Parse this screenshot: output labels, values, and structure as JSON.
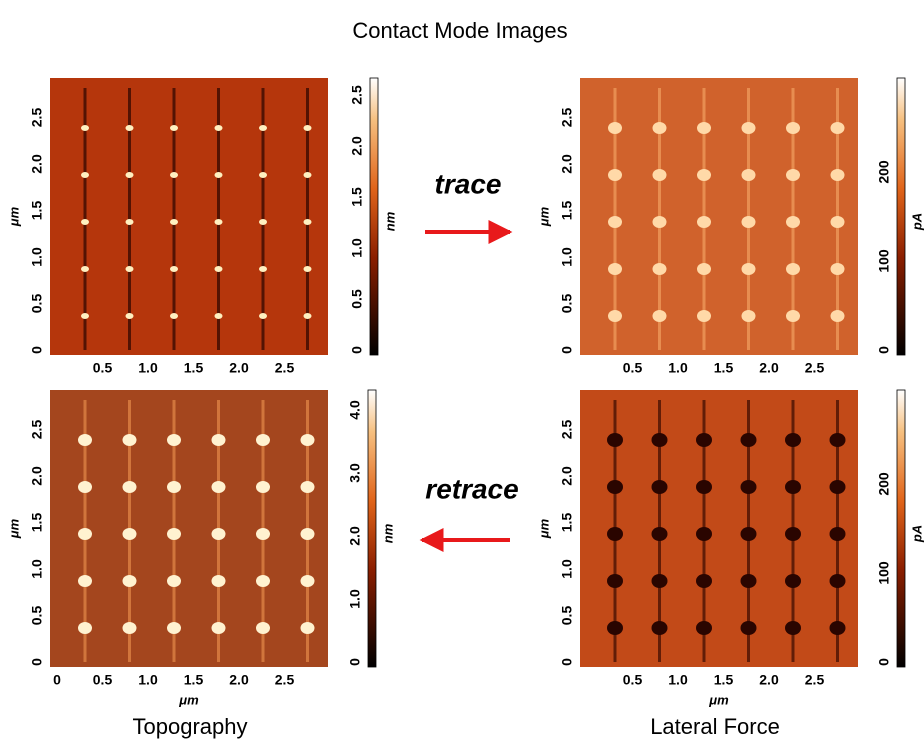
{
  "title": "Contact Mode Images",
  "panels": [
    {
      "y_ticks": [
        "0",
        "0.5",
        "1.0",
        "1.5",
        "2.0",
        "2.5"
      ],
      "y_label": "μm",
      "x_ticks": [
        "0.5",
        "1.0",
        "1.5",
        "2.0",
        "2.5"
      ],
      "colorbar_ticks": [
        "0",
        "0.5",
        "1.0",
        "1.5",
        "2.0",
        "2.5"
      ],
      "colorbar_unit": "nm"
    },
    {
      "y_ticks": [
        "0",
        "0.5",
        "1.0",
        "1.5",
        "2.0",
        "2.5"
      ],
      "y_label": "μm",
      "x_ticks": [
        "0.5",
        "1.0",
        "1.5",
        "2.0",
        "2.5"
      ],
      "colorbar_ticks": [
        "0",
        "100",
        "200"
      ],
      "colorbar_unit": "pA"
    },
    {
      "y_ticks": [
        "0",
        "0.5",
        "1.0",
        "1.5",
        "2.0",
        "2.5"
      ],
      "y_label": "μm",
      "x_ticks": [
        "0",
        "0.5",
        "1.0",
        "1.5",
        "2.0",
        "2.5"
      ],
      "x_label": "μm",
      "colorbar_ticks": [
        "0",
        "1.0",
        "2.0",
        "3.0",
        "4.0"
      ],
      "colorbar_unit": "nm"
    },
    {
      "y_ticks": [
        "0",
        "0.5",
        "1.0",
        "1.5",
        "2.0",
        "2.5"
      ],
      "y_label": "μm",
      "x_ticks": [
        "0.5",
        "1.0",
        "1.5",
        "2.0",
        "2.5"
      ],
      "x_label": "μm",
      "colorbar_ticks": [
        "0",
        "100",
        "200"
      ],
      "colorbar_unit": "pA"
    }
  ],
  "annotations": {
    "trace": "trace",
    "retrace": "retrace"
  },
  "captions": [
    "Topography",
    "Lateral Force"
  ]
}
